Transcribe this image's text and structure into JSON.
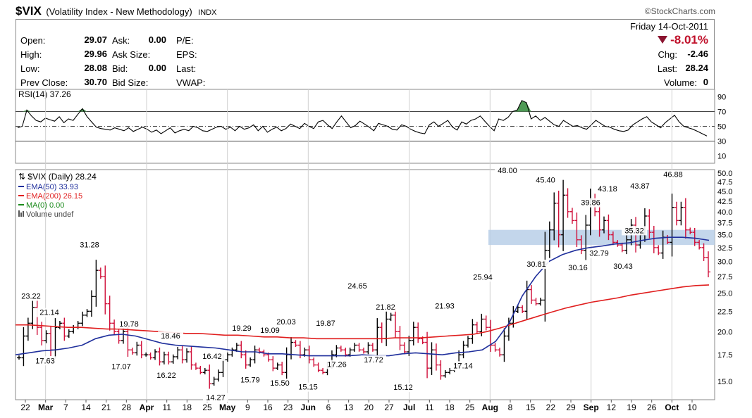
{
  "header": {
    "symbol": "$VIX",
    "name": "(Volatility Index - New Methodology)",
    "exchange": "INDX",
    "watermark": "©StockCharts.com"
  },
  "quote": {
    "date": "Friday  14-Oct-2011",
    "change_pct": "-8.01%",
    "left": [
      {
        "label": "Open:",
        "value": "29.07"
      },
      {
        "label": "High:",
        "value": "29.96"
      },
      {
        "label": "Low:",
        "value": "28.08"
      },
      {
        "label": "Prev Close:",
        "value": "30.70"
      }
    ],
    "mid": [
      {
        "label": "Ask:",
        "value": "0.00"
      },
      {
        "label": "Ask Size:",
        "value": ""
      },
      {
        "label": "Bid:",
        "value": "0.00"
      },
      {
        "label": "Bid Size:",
        "value": ""
      }
    ],
    "fund": [
      "P/E:",
      "EPS:",
      "Last:",
      "VWAP:"
    ],
    "right": [
      {
        "label": "Chg:",
        "value": "-2.46"
      },
      {
        "label": "Last:",
        "value": "28.24"
      },
      {
        "label": "Volume:",
        "value": "0"
      }
    ]
  },
  "chart_data": [
    {
      "type": "line",
      "title": "RSI(14) 37.26",
      "ylim": [
        0,
        100
      ],
      "yticks": [
        10,
        30,
        50,
        70,
        90
      ],
      "reference_lines": [
        30,
        50,
        70
      ],
      "series": [
        {
          "name": "RSI(14)",
          "values": [
            48,
            50,
            72,
            64,
            58,
            56,
            61,
            59,
            57,
            63,
            55,
            60,
            58,
            66,
            74,
            63,
            56,
            49,
            47,
            46,
            45,
            48,
            46,
            44,
            48,
            43,
            46,
            49,
            46,
            42,
            45,
            40,
            44,
            48,
            41,
            44,
            46,
            44,
            50,
            48,
            44,
            43,
            46,
            49,
            50,
            46,
            49,
            44,
            50,
            46,
            48,
            52,
            44,
            50,
            42,
            46,
            49,
            44,
            47,
            53,
            50,
            47,
            54,
            50,
            47,
            56,
            58,
            52,
            47,
            56,
            64,
            56,
            48,
            51,
            57,
            53,
            49,
            44,
            54,
            52,
            50,
            46,
            45,
            52,
            50,
            46,
            43,
            41,
            40,
            52,
            56,
            50,
            54,
            58,
            49,
            45,
            56,
            53,
            58,
            60,
            64,
            57,
            50,
            44,
            60,
            58,
            62,
            70,
            72,
            85,
            82,
            60,
            64,
            58,
            62,
            57,
            52,
            50,
            58,
            54,
            50,
            51,
            48,
            46,
            52,
            58,
            54,
            50,
            49,
            46,
            44,
            43,
            45,
            52,
            56,
            60,
            63,
            56,
            52,
            48,
            55,
            60,
            65,
            56,
            50,
            48,
            46,
            43,
            40,
            37
          ]
        }
      ]
    },
    {
      "type": "line",
      "title": "$VIX (Daily) 28.24",
      "x_labels": [
        "22",
        "Mar",
        "7",
        "14",
        "21",
        "28",
        "Apr",
        "11",
        "18",
        "25",
        "May",
        "9",
        "16",
        "23",
        "Jun",
        "6",
        "13",
        "20",
        "27",
        "Jul",
        "11",
        "18",
        "25",
        "Aug",
        "8",
        "15",
        "22",
        "29",
        "Sep",
        "12",
        "19",
        "26",
        "Oct",
        "10"
      ],
      "y_scale": "log",
      "ylim": [
        13.5,
        51
      ],
      "yticks": [
        15.0,
        17.5,
        20.0,
        22.5,
        25.0,
        27.5,
        30.0,
        32.5,
        35.0,
        37.5,
        40.0,
        42.5,
        45.0,
        47.5,
        50.0
      ],
      "highlight_band": [
        33.0,
        36.0
      ],
      "legend": [
        {
          "name": "EMA(50) 33.93",
          "color": "#1f2f9c"
        },
        {
          "name": "EMA(200) 26.15",
          "color": "#e01e1e"
        },
        {
          "name": "MA(0) 0.00",
          "color": "#1a8a1a"
        },
        {
          "name": "Volume undef",
          "color": "#555555"
        }
      ],
      "annotations": [
        {
          "label": "23.22",
          "value": 23.22
        },
        {
          "label": "21.14",
          "value": 21.14
        },
        {
          "label": "17.63",
          "value": 17.63
        },
        {
          "label": "31.28",
          "value": 31.28
        },
        {
          "label": "19.78",
          "value": 19.78
        },
        {
          "label": "17.07",
          "value": 17.07
        },
        {
          "label": "18.46",
          "value": 18.46
        },
        {
          "label": "16.22",
          "value": 16.22
        },
        {
          "label": "16.42",
          "value": 16.42
        },
        {
          "label": "14.27",
          "value": 14.27
        },
        {
          "label": "19.29",
          "value": 19.29
        },
        {
          "label": "15.79",
          "value": 15.79
        },
        {
          "label": "19.09",
          "value": 19.09
        },
        {
          "label": "20.03",
          "value": 20.03
        },
        {
          "label": "15.50",
          "value": 15.5
        },
        {
          "label": "15.15",
          "value": 15.15
        },
        {
          "label": "19.87",
          "value": 19.87
        },
        {
          "label": "17.26",
          "value": 17.26
        },
        {
          "label": "24.65",
          "value": 24.65
        },
        {
          "label": "17.72",
          "value": 17.72
        },
        {
          "label": "21.82",
          "value": 21.82
        },
        {
          "label": "15.12",
          "value": 15.12
        },
        {
          "label": "21.93",
          "value": 21.93
        },
        {
          "label": "17.14",
          "value": 17.14
        },
        {
          "label": "25.94",
          "value": 25.94
        },
        {
          "label": "48.00",
          "value": 48.0
        },
        {
          "label": "30.81",
          "value": 30.81
        },
        {
          "label": "45.40",
          "value": 45.4
        },
        {
          "label": "30.16",
          "value": 30.16
        },
        {
          "label": "39.86",
          "value": 39.86
        },
        {
          "label": "32.79",
          "value": 32.79
        },
        {
          "label": "43.18",
          "value": 43.18
        },
        {
          "label": "30.43",
          "value": 30.43
        },
        {
          "label": "35.32",
          "value": 35.32
        },
        {
          "label": "43.87",
          "value": 43.87
        },
        {
          "label": "46.88",
          "value": 46.88
        }
      ],
      "series": [
        {
          "name": "$VIX",
          "close": [
            17.2,
            19.5,
            21.0,
            23.0,
            20.5,
            19.0,
            19.8,
            18.0,
            20.5,
            21.0,
            19.5,
            20.0,
            20.5,
            21.0,
            22.0,
            22.5,
            24.5,
            28.5,
            27.5,
            23.5,
            21.0,
            20.0,
            19.0,
            20.0,
            18.0,
            17.7,
            18.5,
            17.5,
            17.5,
            17.2,
            17.8,
            16.8,
            17.5,
            16.8,
            17.3,
            18.0,
            17.0,
            17.8,
            16.5,
            16.2,
            15.8,
            16.0,
            14.8,
            15.2,
            15.8,
            17.0,
            17.5,
            18.0,
            18.5,
            17.5,
            16.5,
            17.0,
            18.0,
            17.8,
            17.5,
            17.0,
            16.2,
            16.5,
            15.8,
            17.5,
            18.8,
            18.5,
            17.5,
            18.0,
            17.0,
            16.5,
            16.0,
            15.8,
            16.5,
            17.5,
            18.2,
            18.0,
            17.5,
            18.0,
            18.5,
            18.0,
            17.8,
            18.5,
            18.0,
            20.5,
            19.2,
            21.5,
            22.0,
            20.0,
            18.5,
            17.8,
            19.0,
            20.5,
            19.2,
            18.8,
            16.2,
            18.0,
            16.5,
            15.5,
            15.8,
            16.0,
            16.5,
            17.5,
            18.5,
            19.2,
            20.8,
            20.0,
            21.5,
            20.5,
            18.5,
            18.0,
            17.5,
            19.5,
            21.0,
            22.5,
            23.0,
            22.5,
            25.5,
            24.0,
            23.5,
            24.0,
            32.0,
            36.0,
            42.0,
            35.0,
            44.0,
            40.0,
            38.0,
            34.0,
            32.0,
            37.0,
            43.0,
            40.0,
            36.0,
            38.0,
            35.0,
            33.5,
            33.0,
            32.0,
            34.0,
            37.0,
            33.0,
            35.0,
            39.0,
            35.5,
            32.5,
            31.5,
            34.5,
            33.5,
            41.0,
            38.0,
            41.0,
            36.0,
            35.5,
            33.5,
            32.5,
            30.7,
            28.24
          ]
        },
        {
          "name": "EMA(50)",
          "values": [
            17.5,
            17.7,
            17.9,
            18.0,
            18.2,
            18.5,
            19.2,
            19.6,
            19.7,
            19.5,
            19.1,
            18.7,
            18.5,
            18.4,
            18.3,
            18.2,
            18.0,
            17.8,
            17.8,
            17.6,
            17.6,
            17.5,
            17.4,
            17.4,
            17.4,
            17.4,
            17.5,
            17.4,
            17.4,
            17.6,
            17.7,
            17.6,
            17.5,
            17.7,
            17.8,
            18.0,
            18.9,
            21.0,
            24.6,
            27.5,
            30.0,
            31.2,
            32.0,
            32.5,
            32.8,
            33.2,
            33.4,
            33.9,
            34.3,
            34.5,
            34.5,
            34.3,
            33.9
          ]
        },
        {
          "name": "EMA(200)",
          "values": [
            20.8,
            20.8,
            20.7,
            20.6,
            20.5,
            20.5,
            20.4,
            20.3,
            20.3,
            20.2,
            20.1,
            20.0,
            19.9,
            19.8,
            19.8,
            19.7,
            19.6,
            19.6,
            19.5,
            19.4,
            19.4,
            19.3,
            19.3,
            19.2,
            19.2,
            19.2,
            19.2,
            19.2,
            19.2,
            19.3,
            19.3,
            19.3,
            19.4,
            19.5,
            19.6,
            19.7,
            20.0,
            20.4,
            20.9,
            21.4,
            21.9,
            22.4,
            22.9,
            23.3,
            23.7,
            24.0,
            24.3,
            24.7,
            25.0,
            25.3,
            25.6,
            25.9,
            26.1,
            26.2
          ]
        }
      ]
    }
  ]
}
